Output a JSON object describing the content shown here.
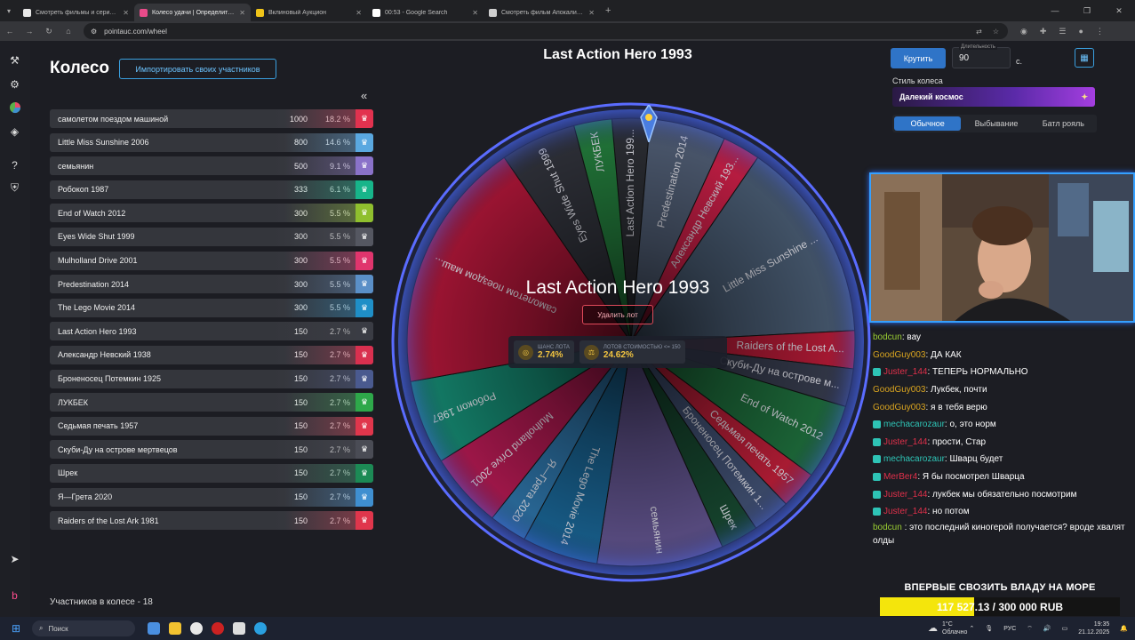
{
  "browser": {
    "tabs": [
      {
        "title": "Смотреть фильмы и сериалы",
        "color": "#e8e8e8",
        "active": false
      },
      {
        "title": "Колесо удачи | Определите п",
        "color": "#e94b8a",
        "active": true
      },
      {
        "title": "Вклиновый Аукцион",
        "color": "#f0c419",
        "active": false
      },
      {
        "title": "00:53 - Google Search",
        "color": "#ffffff",
        "active": false
      },
      {
        "title": "Смотреть фильм Апокалипсис",
        "color": "#cfcfcf",
        "active": false
      }
    ],
    "url": "pointauc.com/wheel"
  },
  "page": {
    "title": "Колесо",
    "import_button": "Импортировать своих участников",
    "participants_count": "Участников в колесе - 18"
  },
  "lots": [
    {
      "name": "самолетом поездом машиной",
      "amount": "1000",
      "percent": "18.2 %",
      "color": "#e2324f"
    },
    {
      "name": "Little Miss Sunshine 2006",
      "amount": "800",
      "percent": "14.6 %",
      "color": "#5aa8e0"
    },
    {
      "name": "семьянин",
      "amount": "500",
      "percent": "9.1 %",
      "color": "#8a72c9"
    },
    {
      "name": "Робокоп 1987",
      "amount": "333",
      "percent": "6.1 %",
      "color": "#17b58a"
    },
    {
      "name": "End of Watch 2012",
      "amount": "300",
      "percent": "5.5 %",
      "color": "#8fbf2e"
    },
    {
      "name": "Eyes Wide Shut 1999",
      "amount": "300",
      "percent": "5.5 %",
      "color": "#555761"
    },
    {
      "name": "Mulholland Drive 2001",
      "amount": "300",
      "percent": "5.5 %",
      "color": "#e0356d"
    },
    {
      "name": "Predestination 2014",
      "amount": "300",
      "percent": "5.5 %",
      "color": "#5a8fc7"
    },
    {
      "name": "The Lego Movie 2014",
      "amount": "300",
      "percent": "5.5 %",
      "color": "#1f8fc7"
    },
    {
      "name": "Last Action Hero 1993",
      "amount": "150",
      "percent": "2.7 %",
      "color": "#3a3c44"
    },
    {
      "name": "Александр Невский 1938",
      "amount": "150",
      "percent": "2.7 %",
      "color": "#d9304f"
    },
    {
      "name": "Броненосец Потемкин 1925",
      "amount": "150",
      "percent": "2.7 %",
      "color": "#4a5a8f"
    },
    {
      "name": "ЛУКБЕК",
      "amount": "150",
      "percent": "2.7 %",
      "color": "#2ea84a"
    },
    {
      "name": "Седьмая печать 1957",
      "amount": "150",
      "percent": "2.7 %",
      "color": "#e0364c"
    },
    {
      "name": "Скуби-Ду на острове мертвецов",
      "amount": "150",
      "percent": "2.7 %",
      "color": "#4a4c55"
    },
    {
      "name": "Шрек",
      "amount": "150",
      "percent": "2.7 %",
      "color": "#1c8a55"
    },
    {
      "name": "Я—Грета 2020",
      "amount": "150",
      "percent": "2.7 %",
      "color": "#3f8fd0"
    },
    {
      "name": "Raiders of the Lost Ark 1981",
      "amount": "150",
      "percent": "2.7 %",
      "color": "#e0364c"
    }
  ],
  "wheel": {
    "top_title": "Last Action Hero 1993",
    "center_name": "Last Action Hero 1993",
    "delete_button": "Удалить лот",
    "stat1_label": "ШАНС ЛОТА",
    "stat1_value": "2.74%",
    "stat2_label": "ЛОТОВ СТОИМОСТЬЮ <= 150",
    "stat2_value": "24.62%",
    "sectors": [
      {
        "label": "Last Action Hero 199...",
        "color": "#2b2d33",
        "share": 150
      },
      {
        "label": "Predestination 2014",
        "color": "#4d5a70",
        "share": 300
      },
      {
        "label": "Александр Невский 193...",
        "color": "#c41e45",
        "share": 150
      },
      {
        "label": "Little Miss Sunshine ...",
        "color": "#46586e",
        "share": 800
      },
      {
        "label": "Raiders of the Lost A...",
        "color": "#b01a35",
        "share": 150
      },
      {
        "label": "Скуби-Ду на острове м...",
        "color": "#34394a",
        "share": 150
      },
      {
        "label": "End of Watch 2012",
        "color": "#1d6a3a",
        "share": 300
      },
      {
        "label": "Седьмая печать 1957",
        "color": "#b51d36",
        "share": 150
      },
      {
        "label": "Броненосец Потемкин 1...",
        "color": "#3e4d6e",
        "share": 150
      },
      {
        "label": "Шрек",
        "color": "#16452e",
        "share": 150
      },
      {
        "label": "семьянин",
        "color": "#5c4f86",
        "share": 500
      },
      {
        "label": "The Lego Movie 2014",
        "color": "#185f8c",
        "share": 300
      },
      {
        "label": "Я—Грета 2020",
        "color": "#2b6d9e",
        "share": 150
      },
      {
        "label": "Mulholland Drive 2001",
        "color": "#a8184d",
        "share": 300
      },
      {
        "label": "Робокоп 1987",
        "color": "#14806a",
        "share": 333
      },
      {
        "label": "самолетом поездом маш...",
        "color": "#a51535",
        "share": 1000
      },
      {
        "label": "Eyes Wide Shut 1999",
        "color": "#2e3038",
        "share": 300
      },
      {
        "label": "ЛУКБЕК",
        "color": "#22783a",
        "share": 150
      }
    ]
  },
  "controls": {
    "spin_button": "Крутить",
    "duration_label": "Длительность",
    "duration_value": "90",
    "duration_unit": "с.",
    "style_label": "Стиль колеса",
    "style_value": "Далекий космос",
    "modes": [
      "Обычное",
      "Выбывание",
      "Батл рояль"
    ]
  },
  "chat": [
    {
      "user": "bodcun",
      "text": " : вау",
      "color": "#9acd32",
      "badge": false
    },
    {
      "user": "GoodGuy003",
      "text": " : ДА КАК",
      "color": "#daa520",
      "badge": false
    },
    {
      "user": "Juster_144",
      "text": " : ТЕПЕРЬ НОРМАЛЬНО",
      "color": "#e0304a",
      "badge": true
    },
    {
      "user": "GoodGuy003",
      "text": " : Лукбек, почти",
      "color": "#daa520",
      "badge": false
    },
    {
      "user": "GoodGuy003",
      "text": " : я в тебя верю",
      "color": "#daa520",
      "badge": false
    },
    {
      "user": "mechacarozaur",
      "text": " : о, это норм",
      "color": "#2ec4b6",
      "badge": true
    },
    {
      "user": "Juster_144",
      "text": " : прости, Стар",
      "color": "#e0304a",
      "badge": true
    },
    {
      "user": "mechacarozaur",
      "text": " : Шварц будет",
      "color": "#2ec4b6",
      "badge": true
    },
    {
      "user": "MerBer4",
      "text": " : Я бы посмотрел Шварца",
      "color": "#e0304a",
      "badge": true
    },
    {
      "user": "Juster_144",
      "text": " : лукбек мы обязательно посмотрим",
      "color": "#e0304a",
      "badge": true
    },
    {
      "user": "Juster_144",
      "text": " : но потом",
      "color": "#e0304a",
      "badge": true
    },
    {
      "user": "bodcun",
      "text": " : это последний киногерой получается? вроде хвалят олды",
      "color": "#9acd32",
      "badge": false
    }
  ],
  "goal": {
    "title": "ВПЕРВЫЕ СВОЗИТЬ ВЛАДУ НА МОРЕ",
    "progress": "117 527.13 / 300 000 RUB",
    "fraction": 0.392
  },
  "taskbar": {
    "search": "Поиск",
    "weather_temp": "1°C",
    "weather_desc": "Облачно",
    "lang": "РУС",
    "time": "19:35",
    "date": "21.12.2025"
  }
}
